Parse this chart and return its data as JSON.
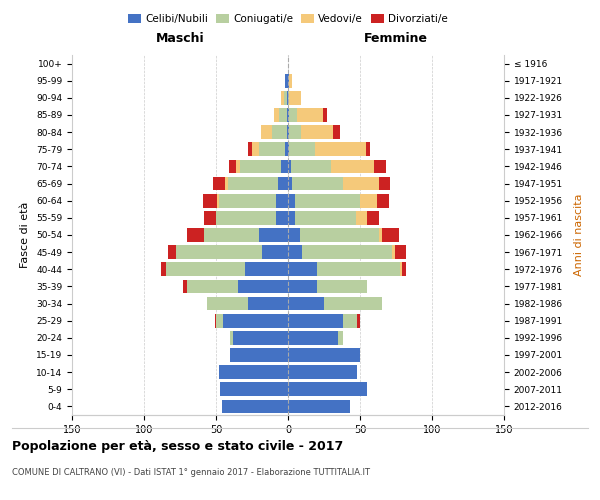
{
  "age_groups": [
    "0-4",
    "5-9",
    "10-14",
    "15-19",
    "20-24",
    "25-29",
    "30-34",
    "35-39",
    "40-44",
    "45-49",
    "50-54",
    "55-59",
    "60-64",
    "65-69",
    "70-74",
    "75-79",
    "80-84",
    "85-89",
    "90-94",
    "95-99",
    "100+"
  ],
  "birth_years": [
    "2012-2016",
    "2007-2011",
    "2002-2006",
    "1997-2001",
    "1992-1996",
    "1987-1991",
    "1982-1986",
    "1977-1981",
    "1972-1976",
    "1967-1971",
    "1962-1966",
    "1957-1961",
    "1952-1956",
    "1947-1951",
    "1942-1946",
    "1937-1941",
    "1932-1936",
    "1927-1931",
    "1922-1926",
    "1917-1921",
    "≤ 1916"
  ],
  "maschi": {
    "celibi": [
      46,
      47,
      48,
      40,
      38,
      45,
      28,
      35,
      30,
      18,
      20,
      8,
      8,
      7,
      5,
      2,
      1,
      1,
      1,
      2,
      0
    ],
    "coniugati": [
      0,
      0,
      0,
      0,
      2,
      5,
      28,
      35,
      55,
      60,
      38,
      42,
      40,
      35,
      28,
      18,
      10,
      5,
      2,
      0,
      0
    ],
    "vedovi": [
      0,
      0,
      0,
      0,
      0,
      0,
      0,
      0,
      0,
      0,
      0,
      0,
      1,
      2,
      3,
      5,
      8,
      4,
      2,
      0,
      0
    ],
    "divorziati": [
      0,
      0,
      0,
      0,
      0,
      1,
      0,
      3,
      3,
      5,
      12,
      8,
      10,
      8,
      5,
      3,
      0,
      0,
      0,
      0,
      0
    ]
  },
  "femmine": {
    "nubili": [
      43,
      55,
      48,
      50,
      35,
      38,
      25,
      20,
      20,
      10,
      8,
      5,
      5,
      3,
      2,
      1,
      1,
      1,
      0,
      1,
      0
    ],
    "coniugate": [
      0,
      0,
      0,
      0,
      3,
      10,
      40,
      35,
      58,
      62,
      55,
      42,
      45,
      35,
      28,
      18,
      8,
      5,
      1,
      0,
      0
    ],
    "vedove": [
      0,
      0,
      0,
      0,
      0,
      0,
      0,
      0,
      1,
      2,
      2,
      8,
      12,
      25,
      30,
      35,
      22,
      18,
      8,
      2,
      0
    ],
    "divorziate": [
      0,
      0,
      0,
      0,
      0,
      2,
      0,
      0,
      3,
      8,
      12,
      8,
      8,
      8,
      8,
      3,
      5,
      3,
      0,
      0,
      0
    ]
  },
  "color_celibi": "#4472c4",
  "color_coniugati": "#b8cfa0",
  "color_vedovi": "#f5c97a",
  "color_divorziati": "#cc2222",
  "xlim": 150,
  "title": "Popolazione per età, sesso e stato civile - 2017",
  "subtitle": "COMUNE DI CALTRANO (VI) - Dati ISTAT 1° gennaio 2017 - Elaborazione TUTTITALIA.IT",
  "ylabel_left": "Fasce di età",
  "ylabel_right": "Anni di nascita",
  "xlabel_maschi": "Maschi",
  "xlabel_femmine": "Femmine"
}
